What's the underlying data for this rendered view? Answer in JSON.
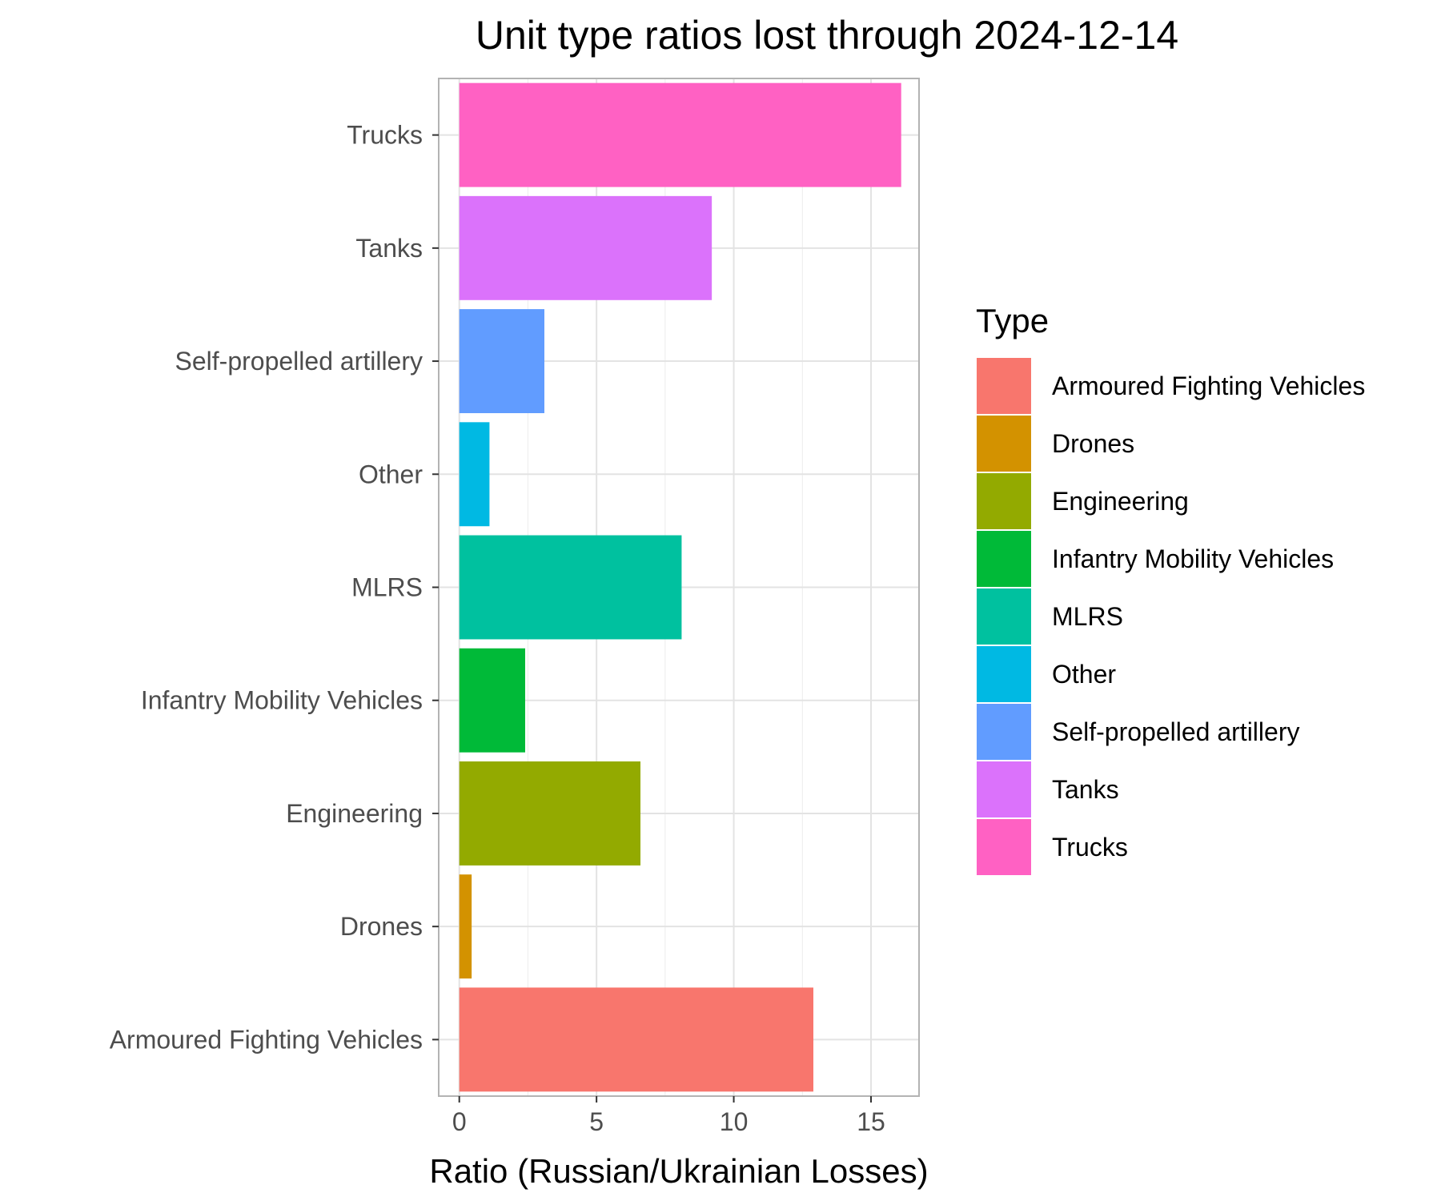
{
  "chart_data": {
    "type": "bar",
    "orientation": "horizontal",
    "title": "Unit type ratios lost through 2024-12-14",
    "xlabel": "Ratio (Russian/Ukrainian Losses)",
    "ylabel": "",
    "xlim": [
      -0.75,
      16.75
    ],
    "xticks": [
      0,
      5,
      10,
      15
    ],
    "xtick_labels": [
      "0",
      "5",
      "10",
      "15"
    ],
    "grid": true,
    "categories": [
      "Armoured Fighting Vehicles",
      "Drones",
      "Engineering",
      "Infantry Mobility Vehicles",
      "MLRS",
      "Other",
      "Self-propelled artillery",
      "Tanks",
      "Trucks"
    ],
    "values": [
      12.9,
      0.45,
      6.6,
      2.4,
      8.1,
      1.1,
      3.1,
      9.2,
      16.1
    ],
    "colors": [
      "#F8766D",
      "#D39200",
      "#93AA00",
      "#00BA38",
      "#00C19F",
      "#00B9E3",
      "#619CFF",
      "#DB72FB",
      "#FF61C3"
    ],
    "legend": {
      "title": "Type",
      "position": "right",
      "labels": [
        "Armoured Fighting Vehicles",
        "Drones",
        "Engineering",
        "Infantry Mobility Vehicles",
        "MLRS",
        "Other",
        "Self-propelled artillery",
        "Tanks",
        "Trucks"
      ]
    }
  }
}
